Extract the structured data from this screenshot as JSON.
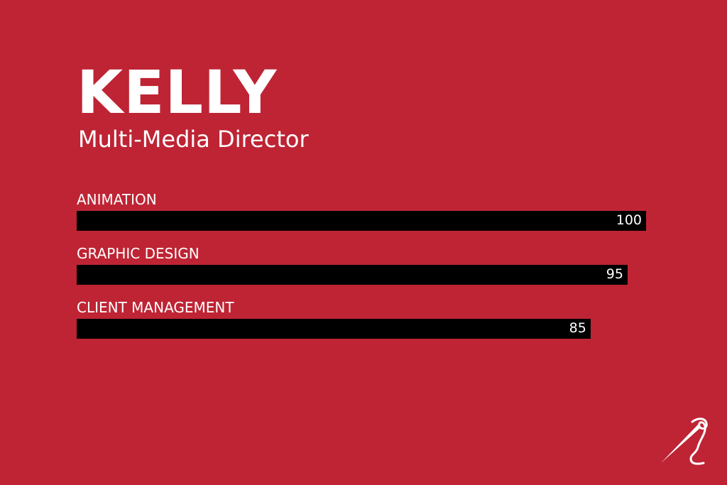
{
  "chart_data": {
    "type": "bar",
    "orientation": "horizontal",
    "title": "KELLY",
    "subtitle": "Multi-Media Director",
    "categories": [
      "ANIMATION",
      "GRAPHIC DESIGN",
      "CLIENT MANAGEMENT"
    ],
    "values": [
      100,
      95,
      85
    ],
    "xlim": [
      0,
      100
    ],
    "grid": false,
    "colors": {
      "background": "#be2434",
      "bar": "#000000",
      "text": "#ffffff"
    }
  },
  "logo": {
    "icon": "needle-thread-icon"
  }
}
